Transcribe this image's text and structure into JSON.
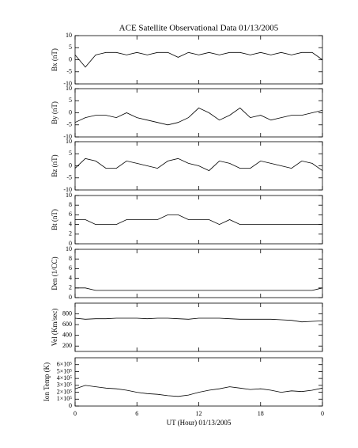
{
  "chart_data": [
    {
      "type": "line",
      "title": "ACE Satellite Observational Data   01/13/2005",
      "ylabel": "Bx (nT)",
      "ylim": [
        -10,
        10
      ],
      "yticks": [
        -10,
        -5,
        0,
        5,
        10
      ],
      "color": "#000000",
      "x": [
        0,
        1,
        2,
        3,
        4,
        5,
        6,
        7,
        8,
        9,
        10,
        11,
        12,
        13,
        14,
        15,
        16,
        17,
        18,
        19,
        20,
        21,
        22,
        23,
        24
      ],
      "values": [
        2,
        -3,
        2,
        3,
        3,
        2,
        3,
        2,
        3,
        3,
        1,
        3,
        2,
        3,
        2,
        3,
        3,
        2,
        3,
        2,
        3,
        2,
        3,
        3,
        0
      ]
    },
    {
      "type": "line",
      "ylabel": "By (nT)",
      "ylim": [
        -10,
        10
      ],
      "yticks": [
        -10,
        -5,
        0,
        5,
        10
      ],
      "color": "#000000",
      "x": [
        0,
        1,
        2,
        3,
        4,
        5,
        6,
        7,
        8,
        9,
        10,
        11,
        12,
        13,
        14,
        15,
        16,
        17,
        18,
        19,
        20,
        21,
        22,
        23,
        24
      ],
      "values": [
        -4,
        -2,
        -1,
        -1,
        -2,
        0,
        -2,
        -3,
        -4,
        -5,
        -4,
        -2,
        2,
        0,
        -3,
        -1,
        2,
        -2,
        -1,
        -3,
        -2,
        -1,
        -1,
        0,
        1
      ]
    },
    {
      "type": "line",
      "ylabel": "Bz (nT)",
      "ylim": [
        -10,
        10
      ],
      "yticks": [
        -10,
        -5,
        0,
        5,
        10
      ],
      "color": "#000000",
      "x": [
        0,
        1,
        2,
        3,
        4,
        5,
        6,
        7,
        8,
        9,
        10,
        11,
        12,
        13,
        14,
        15,
        16,
        17,
        18,
        19,
        20,
        21,
        22,
        23,
        24
      ],
      "values": [
        -1,
        3,
        2,
        -1,
        -1,
        2,
        1,
        0,
        -1,
        2,
        3,
        1,
        0,
        -2,
        2,
        1,
        -1,
        -1,
        2,
        1,
        0,
        -1,
        2,
        1,
        -2
      ]
    },
    {
      "type": "line",
      "ylabel": "Bt (nT)",
      "ylim": [
        0,
        10
      ],
      "yticks": [
        0,
        2,
        4,
        6,
        8,
        10
      ],
      "color": "#000000",
      "x": [
        0,
        1,
        2,
        3,
        4,
        5,
        6,
        7,
        8,
        9,
        10,
        11,
        12,
        13,
        14,
        15,
        16,
        17,
        18,
        19,
        20,
        21,
        22,
        23,
        24
      ],
      "values": [
        5,
        5,
        4,
        4,
        4,
        5,
        5,
        5,
        5,
        6,
        6,
        5,
        5,
        5,
        4,
        5,
        4,
        4,
        4,
        4,
        4,
        4,
        4,
        4,
        4
      ]
    },
    {
      "type": "line",
      "ylabel": "Den (1/CC)",
      "ylim": [
        0,
        10
      ],
      "yticks": [
        0,
        2,
        4,
        6,
        8,
        10
      ],
      "color": "#000000",
      "x": [
        0,
        1,
        2,
        3,
        4,
        5,
        6,
        7,
        8,
        9,
        10,
        11,
        12,
        13,
        14,
        15,
        16,
        17,
        18,
        19,
        20,
        21,
        22,
        23,
        24
      ],
      "values": [
        2,
        2,
        1.5,
        1.5,
        1.5,
        1.5,
        1.5,
        1.5,
        1.5,
        1.5,
        1.5,
        1.5,
        1.5,
        1.5,
        1.5,
        1.5,
        1.5,
        1.5,
        1.5,
        1.5,
        1.5,
        1.5,
        1.5,
        1.5,
        2
      ]
    },
    {
      "type": "line",
      "ylabel": "Vel (Km/sec)",
      "ylim": [
        100,
        1000
      ],
      "yticks": [
        200,
        400,
        600,
        800
      ],
      "color": "#000000",
      "x": [
        0,
        1,
        2,
        3,
        4,
        5,
        6,
        7,
        8,
        9,
        10,
        11,
        12,
        13,
        14,
        15,
        16,
        17,
        18,
        19,
        20,
        21,
        22,
        23,
        24
      ],
      "values": [
        720,
        700,
        710,
        710,
        720,
        720,
        720,
        710,
        720,
        720,
        710,
        700,
        720,
        720,
        720,
        710,
        700,
        700,
        700,
        700,
        690,
        680,
        650,
        660,
        670
      ]
    },
    {
      "type": "line",
      "ylabel": "Ion Temp (K)",
      "ylim": [
        0,
        700000
      ],
      "yticks": [
        0,
        {
          "value": 100000,
          "label": "1×10⁵"
        },
        {
          "value": 200000,
          "label": "2×10⁵"
        },
        {
          "value": 300000,
          "label": "3×10⁵"
        },
        {
          "value": 400000,
          "label": "4×10⁵"
        },
        {
          "value": 500000,
          "label": "5×10⁵"
        },
        {
          "value": 600000,
          "label": "6×10⁵"
        }
      ],
      "color": "#000000",
      "x": [
        0,
        1,
        2,
        3,
        4,
        5,
        6,
        7,
        8,
        9,
        10,
        11,
        12,
        13,
        14,
        15,
        16,
        17,
        18,
        19,
        20,
        21,
        22,
        23,
        24
      ],
      "values": [
        250000,
        300000,
        280000,
        260000,
        250000,
        230000,
        200000,
        180000,
        170000,
        150000,
        140000,
        160000,
        200000,
        230000,
        250000,
        280000,
        260000,
        240000,
        250000,
        230000,
        200000,
        220000,
        210000,
        230000,
        260000
      ],
      "xlabel": "UT (Hour)   01/13/2005",
      "xlim": [
        0,
        24
      ],
      "xticks": [
        0,
        6,
        12,
        18,
        {
          "value": 24,
          "label": "0"
        }
      ]
    }
  ]
}
